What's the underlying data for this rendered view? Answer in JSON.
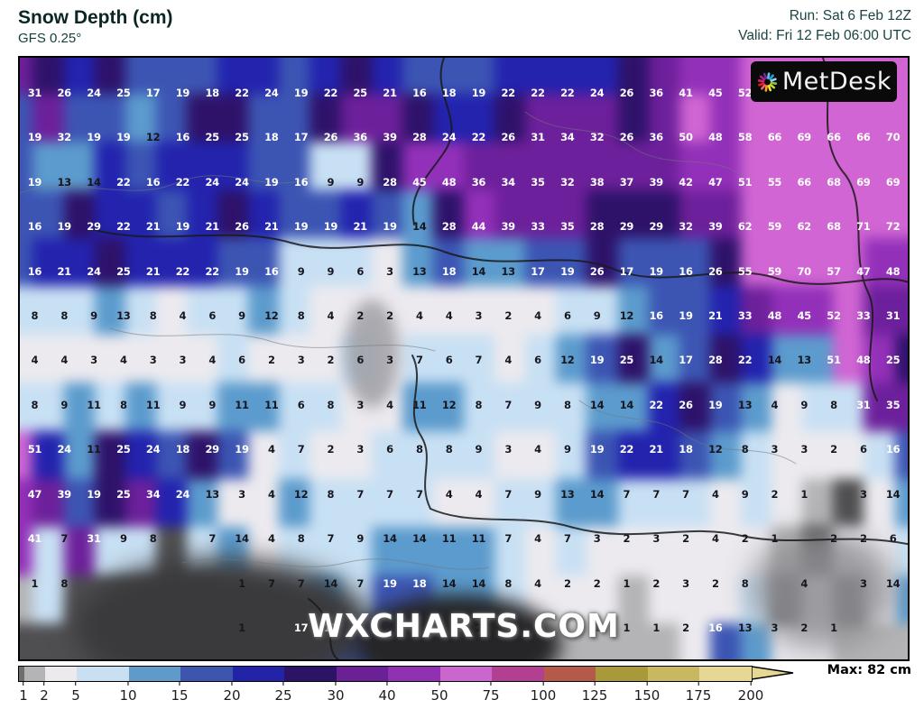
{
  "header": {
    "title": "Snow Depth (cm)",
    "model": "GFS 0.25°",
    "run_label": "Run: Sat 6 Feb 12Z",
    "valid_label": "Valid: Fri 12 Feb 06:00 UTC"
  },
  "branding": {
    "logo_text": "MetDesk",
    "watermark": "WXCHARTS.COM",
    "pinwheel_colors": [
      "#57c7f0",
      "#2aa3dd",
      "#8ed8f5",
      "#8dc63f",
      "#c5d92d",
      "#f2e93a",
      "#f7a823",
      "#f0606e",
      "#ed1c24",
      "#d61f6f",
      "#a3238e",
      "#6e2d91"
    ]
  },
  "footer": {
    "max_label": "Max: 82 cm"
  },
  "colorbar": {
    "labels": [
      "1",
      "2",
      "5",
      "10",
      "15",
      "20",
      "25",
      "30",
      "40",
      "50",
      "75",
      "100",
      "125",
      "150",
      "175",
      "200"
    ],
    "segment_colors": [
      "#6e6e6e",
      "#b4b4b6",
      "#eceaef",
      "#c9e0f2",
      "#5e9bca",
      "#3d55af",
      "#2323a8",
      "#2d1366",
      "#6b2196",
      "#9031b4",
      "#cc66cf",
      "#b23f8f",
      "#b55a49",
      "#a89a3a",
      "#c8b860",
      "#e6d795"
    ],
    "widths": [
      6,
      23,
      35,
      58,
      57,
      58,
      57,
      58,
      57,
      58,
      57,
      58,
      57,
      58,
      57,
      58
    ]
  },
  "map": {
    "cols": 30,
    "rows": 13,
    "thresholds": [
      1,
      2,
      5,
      10,
      15,
      20,
      25,
      30,
      40,
      50,
      75,
      100,
      125,
      150,
      175,
      200
    ],
    "dark_text_classes": [
      1,
      2,
      3,
      4,
      13,
      14,
      15
    ],
    "terrain_color": "#4f4f52",
    "grid": [
      [
        31,
        26,
        24,
        25,
        17,
        19,
        18,
        22,
        24,
        19,
        22,
        25,
        21,
        16,
        18,
        19,
        22,
        22,
        22,
        24,
        26,
        36,
        41,
        45,
        52,
        null,
        null,
        null,
        null,
        null
      ],
      [
        19,
        32,
        19,
        19,
        12,
        16,
        25,
        25,
        18,
        17,
        26,
        36,
        39,
        28,
        24,
        22,
        26,
        31,
        34,
        32,
        26,
        36,
        50,
        48,
        58,
        66,
        69,
        66,
        66,
        70
      ],
      [
        19,
        13,
        14,
        22,
        16,
        22,
        24,
        24,
        19,
        16,
        9,
        9,
        28,
        45,
        48,
        36,
        34,
        35,
        32,
        38,
        37,
        39,
        42,
        47,
        51,
        55,
        66,
        68,
        69,
        69
      ],
      [
        16,
        19,
        29,
        22,
        21,
        19,
        21,
        26,
        21,
        19,
        19,
        21,
        19,
        14,
        28,
        44,
        39,
        33,
        35,
        28,
        29,
        29,
        32,
        39,
        62,
        59,
        62,
        68,
        71,
        72
      ],
      [
        16,
        21,
        24,
        25,
        21,
        22,
        22,
        19,
        16,
        9,
        9,
        6,
        3,
        13,
        18,
        14,
        13,
        17,
        19,
        26,
        17,
        19,
        16,
        26,
        55,
        59,
        70,
        57,
        47,
        48
      ],
      [
        8,
        8,
        9,
        13,
        8,
        4,
        6,
        9,
        12,
        8,
        4,
        2,
        2,
        4,
        4,
        3,
        2,
        4,
        6,
        9,
        12,
        16,
        19,
        21,
        33,
        48,
        45,
        52,
        33,
        31
      ],
      [
        4,
        4,
        3,
        4,
        3,
        3,
        4,
        6,
        2,
        3,
        2,
        6,
        3,
        7,
        6,
        7,
        4,
        6,
        12,
        19,
        25,
        14,
        17,
        28,
        22,
        14,
        13,
        51,
        48,
        25
      ],
      [
        8,
        9,
        11,
        8,
        11,
        9,
        9,
        11,
        11,
        6,
        8,
        3,
        4,
        11,
        12,
        8,
        7,
        9,
        8,
        14,
        14,
        22,
        26,
        19,
        13,
        4,
        9,
        8,
        31,
        35
      ],
      [
        51,
        24,
        11,
        25,
        24,
        18,
        29,
        19,
        4,
        7,
        2,
        3,
        6,
        8,
        8,
        9,
        3,
        4,
        9,
        19,
        22,
        21,
        18,
        12,
        8,
        3,
        3,
        2,
        6,
        16
      ],
      [
        47,
        39,
        19,
        25,
        34,
        24,
        13,
        3,
        4,
        12,
        8,
        7,
        7,
        7,
        4,
        4,
        7,
        9,
        13,
        14,
        7,
        7,
        7,
        4,
        9,
        2,
        1,
        "g",
        3,
        14
      ],
      [
        41,
        7,
        31,
        9,
        8,
        "g",
        7,
        14,
        4,
        8,
        7,
        9,
        14,
        14,
        11,
        11,
        7,
        4,
        7,
        3,
        2,
        3,
        2,
        4,
        2,
        1,
        "g",
        2,
        2,
        6
      ],
      [
        1,
        8,
        "g",
        "g",
        "g",
        "g",
        "g",
        1,
        7,
        7,
        14,
        7,
        19,
        18,
        14,
        14,
        8,
        4,
        2,
        2,
        1,
        2,
        3,
        2,
        8,
        "g",
        4,
        "g",
        3,
        14
      ],
      [
        "g",
        "g",
        "g",
        "g",
        "g",
        "g",
        "g",
        1,
        "g",
        17,
        17,
        null,
        null,
        null,
        null,
        2,
        null,
        1,
        null,
        1,
        1,
        1,
        2,
        16,
        13,
        3,
        2,
        1,
        null,
        null
      ]
    ]
  }
}
